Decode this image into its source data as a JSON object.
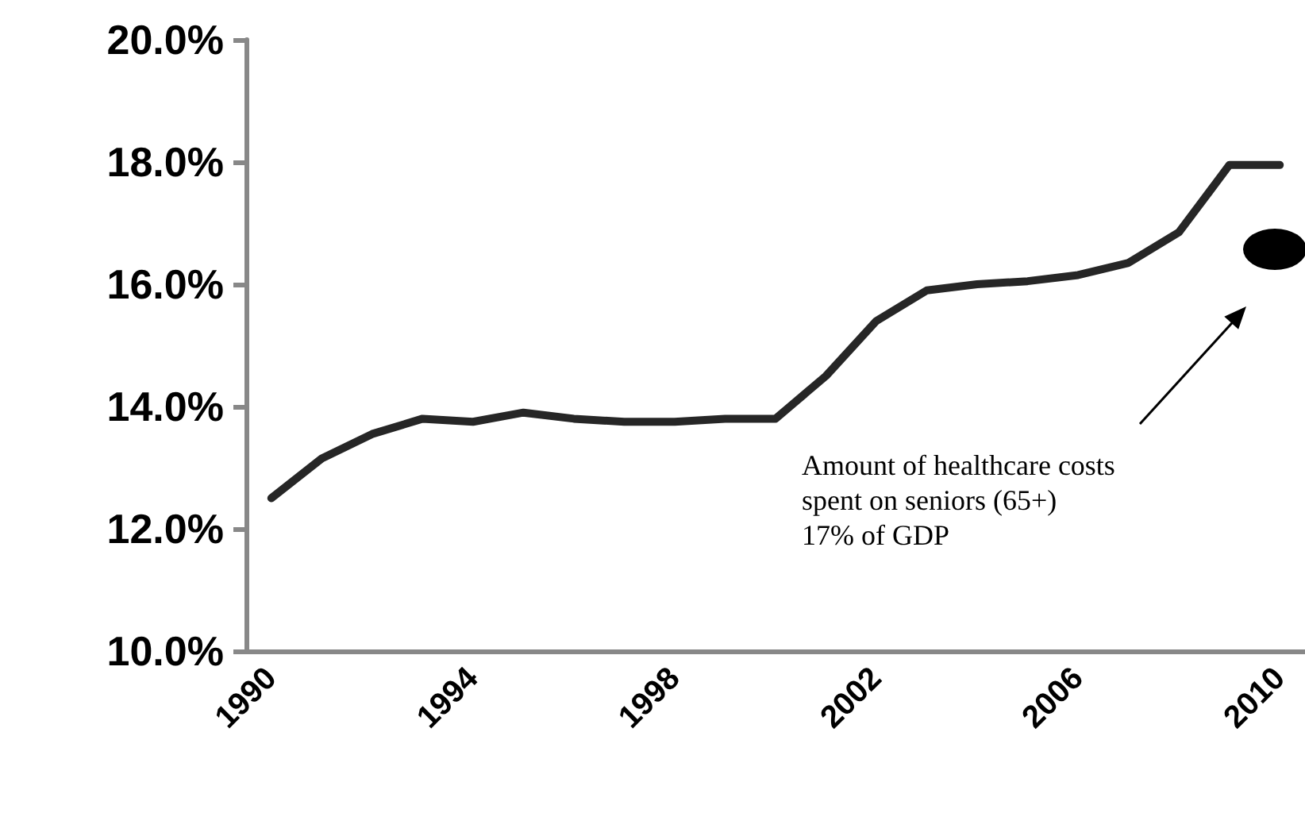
{
  "chart_data": {
    "type": "line",
    "categories": [
      "1990",
      null,
      null,
      null,
      "1994",
      null,
      null,
      null,
      "1998",
      null,
      null,
      null,
      "2002",
      null,
      null,
      null,
      "2006",
      null,
      null,
      null,
      "2010"
    ],
    "series": [
      {
        "color": "#262626",
        "values": [
          12.5,
          13.15,
          13.55,
          13.8,
          13.75,
          13.9,
          13.8,
          13.75,
          13.75,
          13.8,
          13.8,
          14.5,
          15.4,
          15.9,
          16.0,
          16.05,
          16.15,
          16.35,
          16.85,
          17.95,
          17.95
        ]
      }
    ],
    "ylim": [
      10,
      20
    ],
    "yticks": [
      {
        "value": 10,
        "label": "10.0%"
      },
      {
        "value": 12,
        "label": "12.0%"
      },
      {
        "value": 14,
        "label": "14.0%"
      },
      {
        "value": 16,
        "label": "16.0%"
      },
      {
        "value": 18,
        "label": "18.0%"
      },
      {
        "value": 20,
        "label": "20.0%"
      }
    ],
    "annotations": [
      "Amount of healthcare costs\nspent on seniors (65+)\n17% of GDP"
    ],
    "grid": false,
    "marker": "none",
    "line_style": "solid"
  }
}
